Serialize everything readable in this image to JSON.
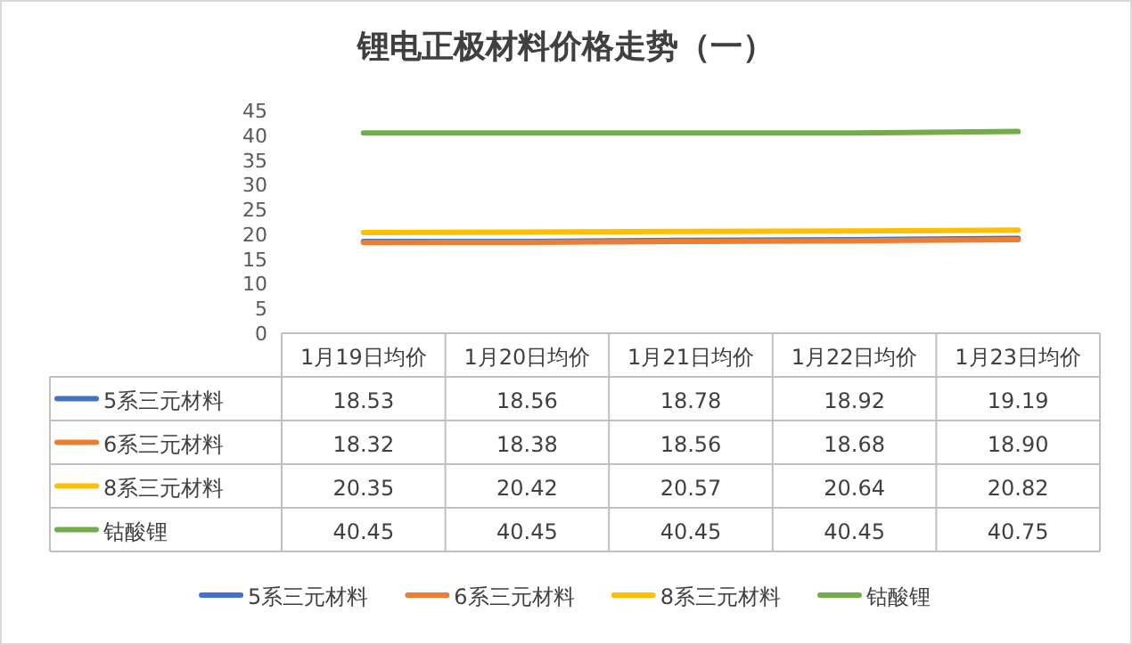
{
  "chart_data": {
    "type": "line",
    "title": "锂电正极材料价格走势（一）",
    "categories": [
      "1月19日均价",
      "1月20日均价",
      "1月21日均价",
      "1月22日均价",
      "1月23日均价"
    ],
    "series": [
      {
        "name": "5系三元材料",
        "color": "#4472c4",
        "values": [
          18.53,
          18.56,
          18.78,
          18.92,
          19.19
        ]
      },
      {
        "name": "6系三元材料",
        "color": "#ed7d31",
        "values": [
          18.32,
          18.38,
          18.56,
          18.68,
          18.9
        ]
      },
      {
        "name": "8系三元材料",
        "color": "#ffc000",
        "values": [
          20.35,
          20.42,
          20.57,
          20.64,
          20.82
        ]
      },
      {
        "name": "钴酸锂",
        "color": "#70ad47",
        "values": [
          40.45,
          40.45,
          40.45,
          40.45,
          40.75
        ]
      }
    ],
    "value_labels": [
      [
        "18.53",
        "18.56",
        "18.78",
        "18.92",
        "19.19"
      ],
      [
        "18.32",
        "18.38",
        "18.56",
        "18.68",
        "18.90"
      ],
      [
        "20.35",
        "20.42",
        "20.57",
        "20.64",
        "20.82"
      ],
      [
        "40.45",
        "40.45",
        "40.45",
        "40.45",
        "40.75"
      ]
    ],
    "ylim": [
      0,
      45
    ],
    "yticks": [
      0,
      5,
      10,
      15,
      20,
      25,
      30,
      35,
      40,
      45
    ],
    "grid": false,
    "legend": "bottom",
    "marker": "none",
    "line_style": "solid"
  }
}
